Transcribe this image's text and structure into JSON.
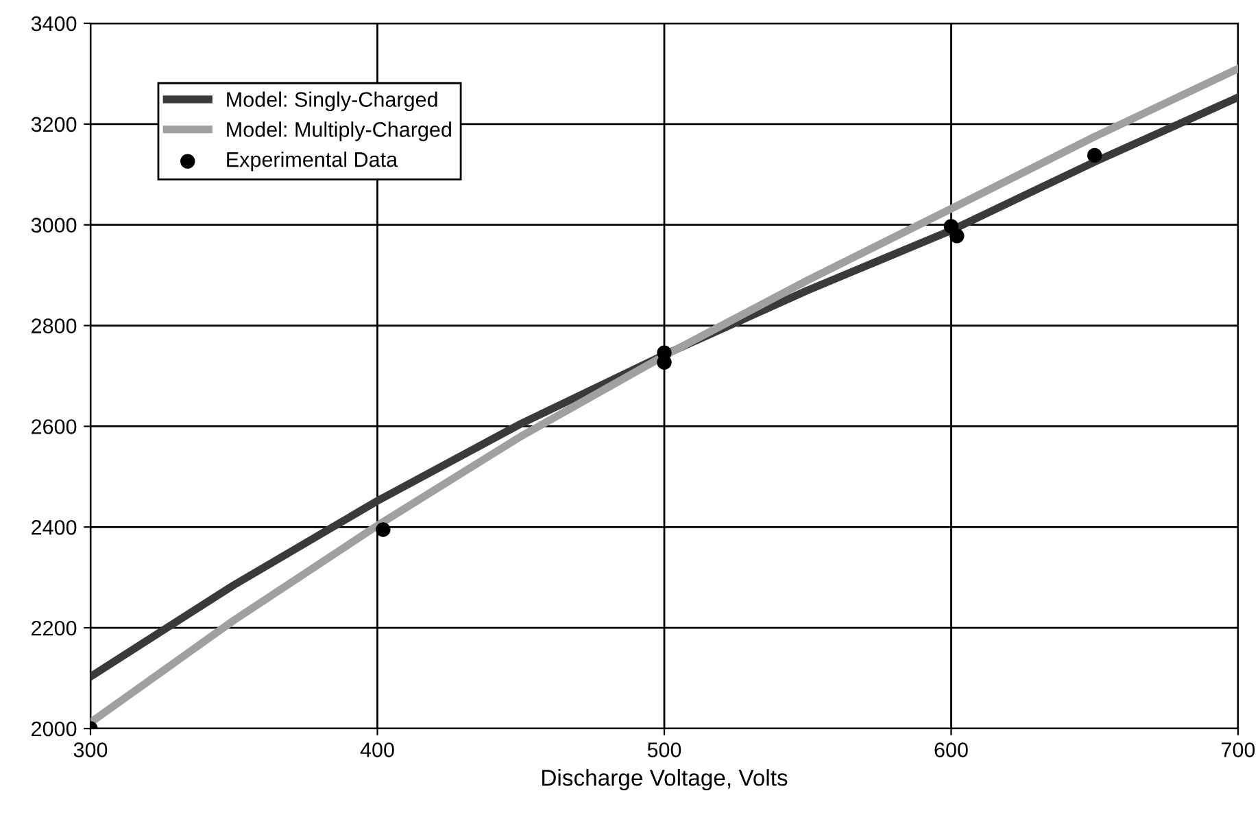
{
  "chart_data": {
    "type": "line",
    "xlabel": "Discharge Voltage, Volts",
    "series": [
      {
        "name": "Model: Singly-Charged",
        "color": "#3a3a3a",
        "x": [
          300,
          350,
          400,
          450,
          500,
          550,
          600,
          650,
          700
        ],
        "values": [
          2103,
          2285,
          2452,
          2605,
          2742,
          2870,
          2989,
          3125,
          3253
        ]
      },
      {
        "name": "Model: Multiply-Charged",
        "color": "#a0a0a0",
        "x": [
          300,
          350,
          400,
          450,
          500,
          550,
          600,
          650,
          700
        ],
        "values": [
          2012,
          2215,
          2403,
          2580,
          2740,
          2890,
          3032,
          3175,
          3310
        ]
      },
      {
        "name": "Experimental Data",
        "type": "scatter",
        "marker": "circle",
        "color": "#000000",
        "x": [
          300,
          402,
          500,
          500,
          600,
          602,
          650
        ],
        "values": [
          2000,
          2395,
          2746,
          2727,
          2997,
          2978,
          3138
        ]
      }
    ],
    "xlim": [
      300,
      700
    ],
    "xticks": [
      300,
      400,
      500,
      600,
      700
    ],
    "ylim": [
      2000,
      3400
    ],
    "yticks": [
      2000,
      2200,
      2400,
      2600,
      2800,
      3000,
      3200,
      3400
    ],
    "grid": true,
    "legend": "top left"
  }
}
